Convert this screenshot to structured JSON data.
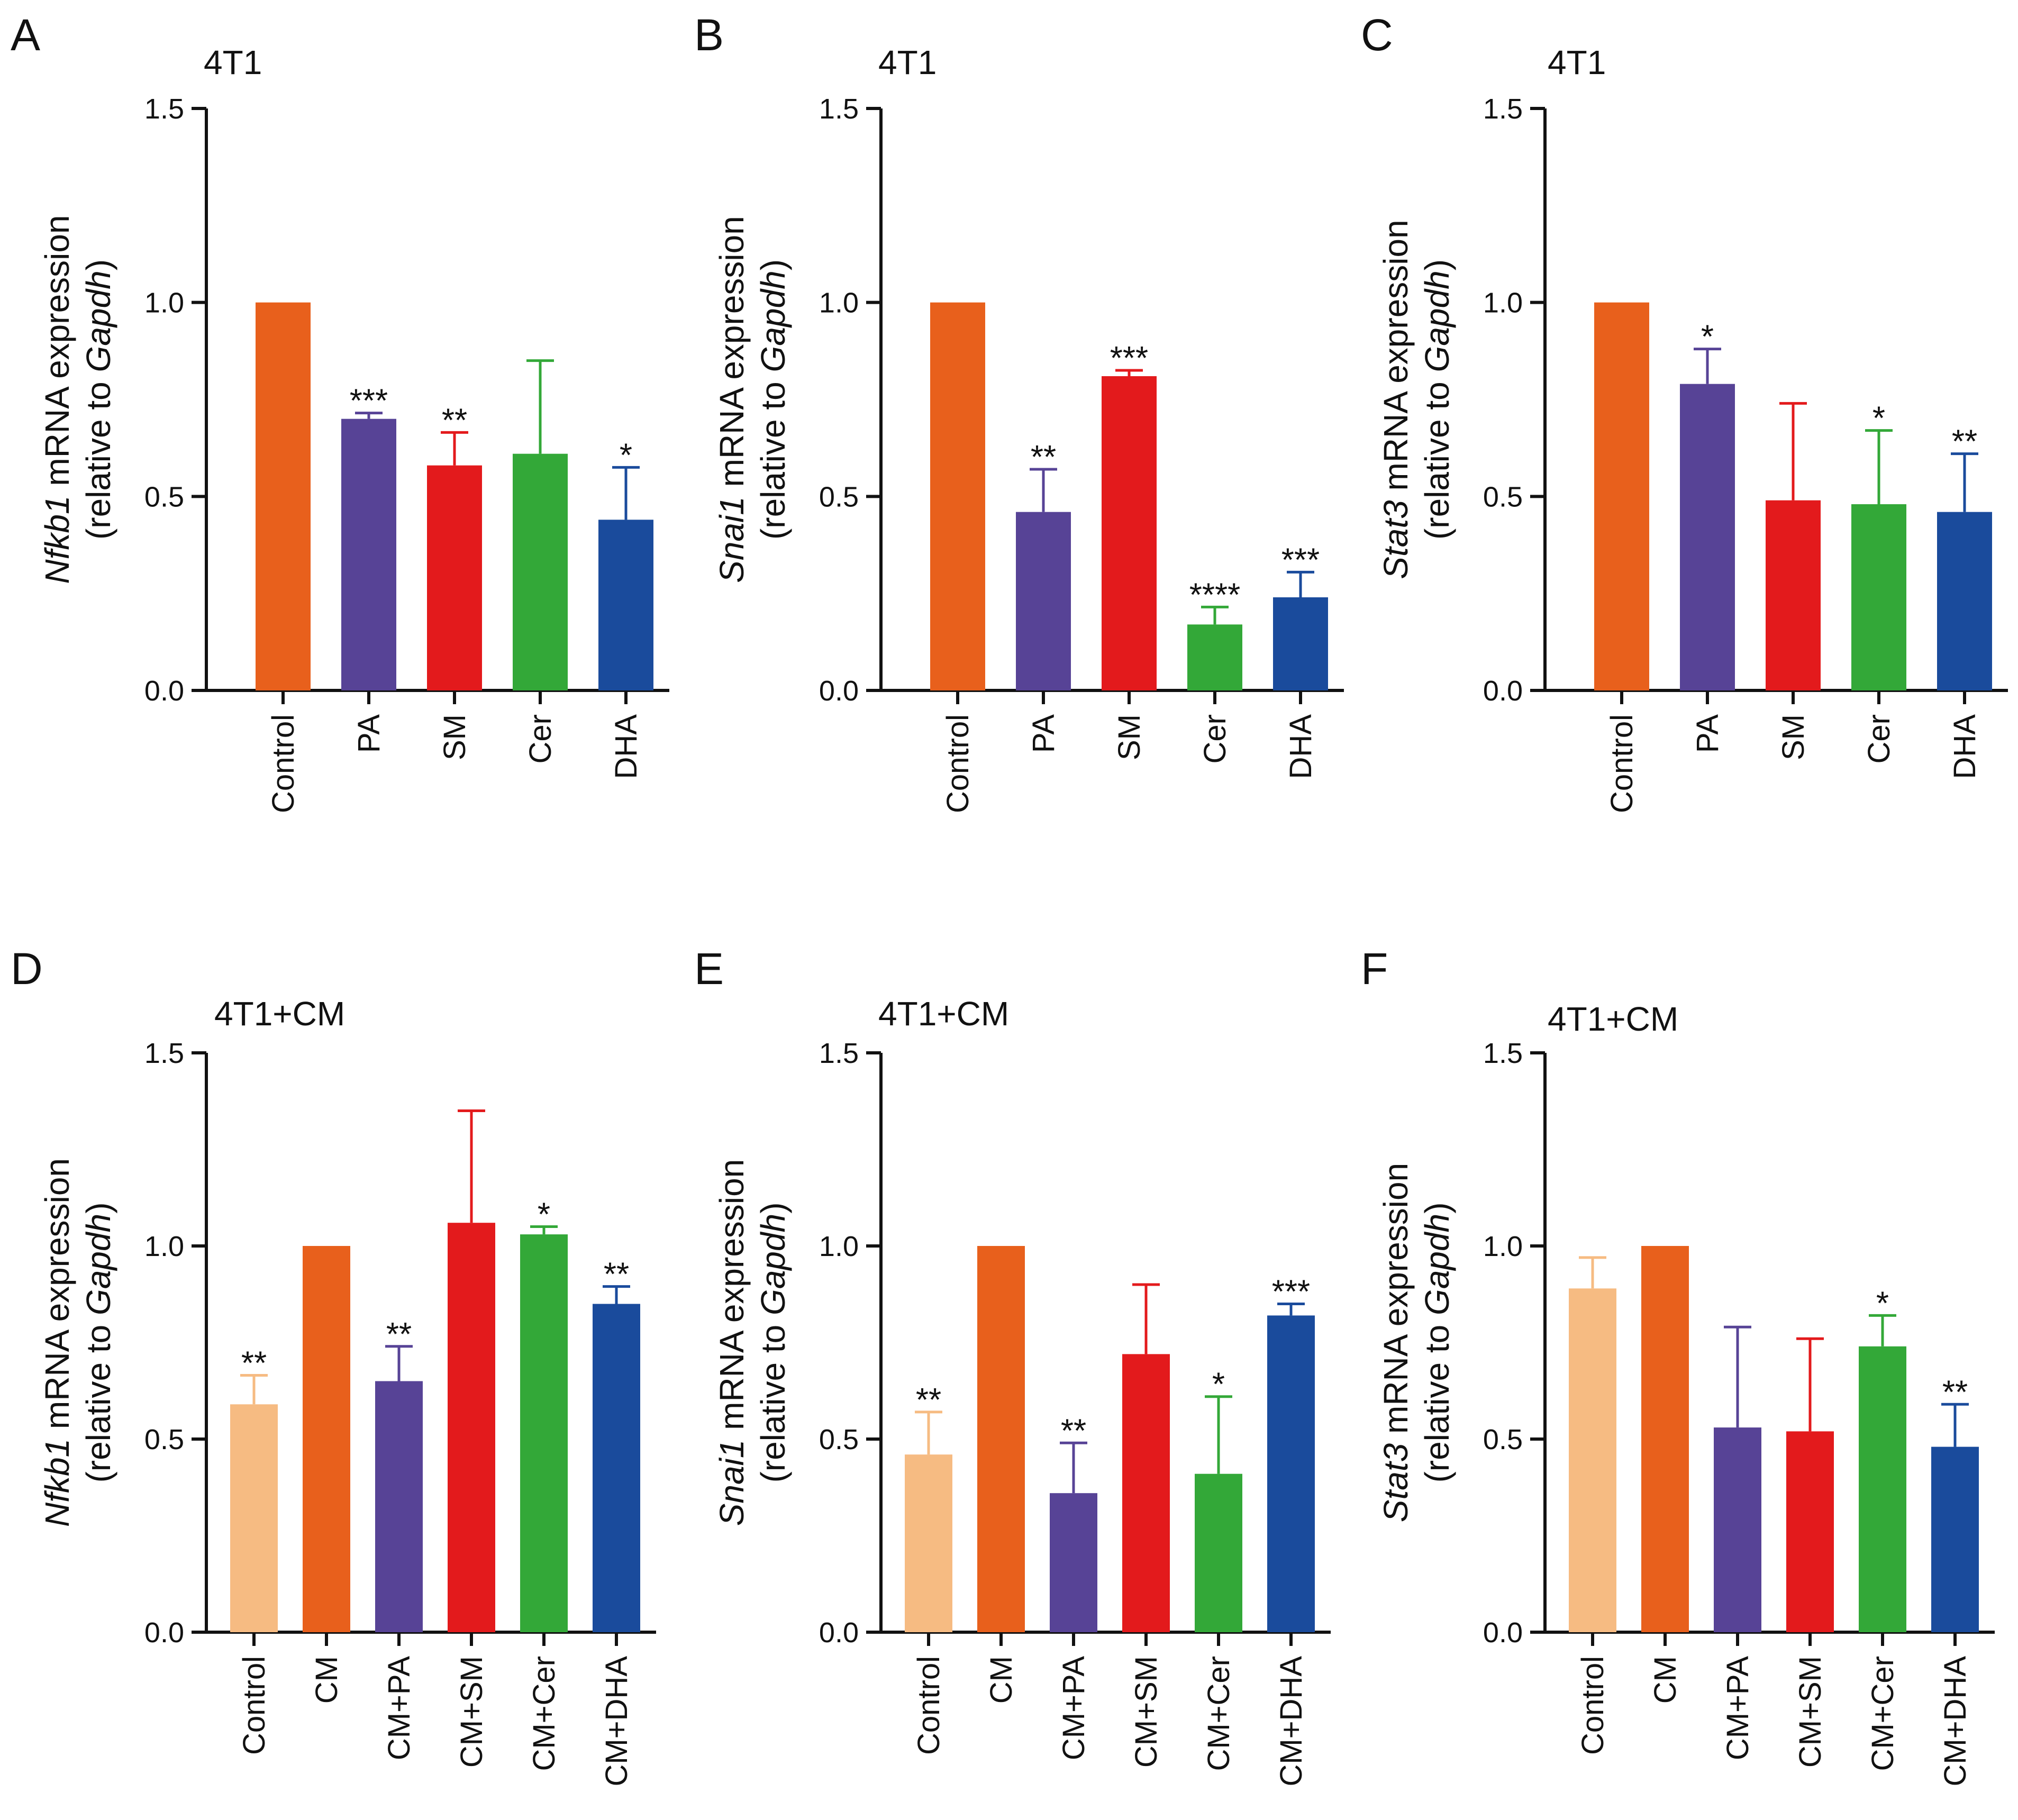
{
  "chart_data": [
    {
      "type": "bar",
      "panel": "A",
      "title": "4T1",
      "ylabel": {
        "gene": "Nfkb1",
        "rest": " mRNA expression",
        "line2_pre": "(relative to ",
        "ref": "Gapdh",
        "line2_post": ")"
      },
      "yticks": [
        "0.0",
        "0.5",
        "1.0",
        "1.5"
      ],
      "ylim": [
        0,
        1.5
      ],
      "categories": [
        "Control",
        "PA",
        "SM",
        "Cer",
        "DHA"
      ],
      "values": [
        1.0,
        0.7,
        0.58,
        0.61,
        0.44
      ],
      "errors": [
        0,
        0.015,
        0.085,
        0.24,
        0.135
      ],
      "significance": [
        "",
        "***",
        "**",
        "",
        "*"
      ],
      "colors": [
        "#e8601c",
        "#574396",
        "#e31a1c",
        "#33a838",
        "#1a4b9c"
      ]
    },
    {
      "type": "bar",
      "panel": "B",
      "title": "4T1",
      "ylabel": {
        "gene": "Snai1",
        "rest": " mRNA expression",
        "line2_pre": "(relative to ",
        "ref": "Gapdh",
        "line2_post": ")"
      },
      "yticks": [
        "0.0",
        "0.5",
        "1.0",
        "1.5"
      ],
      "ylim": [
        0,
        1.5
      ],
      "categories": [
        "Control",
        "PA",
        "SM",
        "Cer",
        "DHA"
      ],
      "values": [
        1.0,
        0.46,
        0.81,
        0.17,
        0.24
      ],
      "errors": [
        0,
        0.11,
        0.015,
        0.045,
        0.065
      ],
      "significance": [
        "",
        "**",
        "***",
        "****",
        "***"
      ],
      "colors": [
        "#e8601c",
        "#574396",
        "#e31a1c",
        "#33a838",
        "#1a4b9c"
      ]
    },
    {
      "type": "bar",
      "panel": "C",
      "title": "4T1",
      "ylabel": {
        "gene": "Stat3",
        "rest": " mRNA expression",
        "line2_pre": "(relative to ",
        "ref": "Gapdh",
        "line2_post": ")"
      },
      "yticks": [
        "0.0",
        "0.5",
        "1.0",
        "1.5"
      ],
      "ylim": [
        0,
        1.5
      ],
      "categories": [
        "Control",
        "PA",
        "SM",
        "Cer",
        "DHA"
      ],
      "values": [
        1.0,
        0.79,
        0.49,
        0.48,
        0.46
      ],
      "errors": [
        0,
        0.09,
        0.25,
        0.19,
        0.15
      ],
      "significance": [
        "",
        "*",
        "",
        "*",
        "**"
      ],
      "colors": [
        "#e8601c",
        "#574396",
        "#e31a1c",
        "#33a838",
        "#1a4b9c"
      ]
    },
    {
      "type": "bar",
      "panel": "D",
      "title": "4T1+CM",
      "ylabel": {
        "gene": "Nfkb1",
        "rest": " mRNA expression",
        "line2_pre": "(relative to ",
        "ref": "Gapdh",
        "line2_post": ")"
      },
      "yticks": [
        "0.0",
        "0.5",
        "1.0",
        "1.5"
      ],
      "ylim": [
        0,
        1.5
      ],
      "categories": [
        "Control",
        "CM",
        "CM+PA",
        "CM+SM",
        "CM+Cer",
        "CM+DHA"
      ],
      "values": [
        0.59,
        1.0,
        0.65,
        1.06,
        1.03,
        0.85
      ],
      "errors": [
        0.075,
        0,
        0.09,
        0.29,
        0.02,
        0.045
      ],
      "significance": [
        "**",
        "",
        "**",
        "",
        "*",
        "**"
      ],
      "colors": [
        "#f6bb82",
        "#e8601c",
        "#574396",
        "#e31a1c",
        "#33a838",
        "#1a4b9c"
      ]
    },
    {
      "type": "bar",
      "panel": "E",
      "title": "4T1+CM",
      "ylabel": {
        "gene": "Snai1",
        "rest": " mRNA expression",
        "line2_pre": "(relative to ",
        "ref": "Gapdh",
        "line2_post": ")"
      },
      "yticks": [
        "0.0",
        "0.5",
        "1.0",
        "1.5"
      ],
      "ylim": [
        0,
        1.5
      ],
      "categories": [
        "Control",
        "CM",
        "CM+PA",
        "CM+SM",
        "CM+Cer",
        "CM+DHA"
      ],
      "values": [
        0.46,
        1.0,
        0.36,
        0.72,
        0.41,
        0.82
      ],
      "errors": [
        0.11,
        0,
        0.13,
        0.18,
        0.2,
        0.03
      ],
      "significance": [
        "**",
        "",
        "**",
        "",
        "*",
        "***"
      ],
      "colors": [
        "#f6bb82",
        "#e8601c",
        "#574396",
        "#e31a1c",
        "#33a838",
        "#1a4b9c"
      ]
    },
    {
      "type": "bar",
      "panel": "F",
      "title": "4T1+CM",
      "ylabel": {
        "gene": "Stat3",
        "rest": " mRNA expression",
        "line2_pre": "(relative to ",
        "ref": "Gapdh",
        "line2_post": ")"
      },
      "yticks": [
        "0.0",
        "0.5",
        "1.0",
        "1.5"
      ],
      "ylim": [
        0,
        1.5
      ],
      "categories": [
        "Control",
        "CM",
        "CM+PA",
        "CM+SM",
        "CM+Cer",
        "CM+DHA"
      ],
      "values": [
        0.89,
        1.0,
        0.53,
        0.52,
        0.74,
        0.48
      ],
      "errors": [
        0.08,
        0,
        0.26,
        0.24,
        0.08,
        0.11
      ],
      "significance": [
        "",
        "",
        "",
        "",
        "*",
        "**"
      ],
      "colors": [
        "#f6bb82",
        "#e8601c",
        "#574396",
        "#e31a1c",
        "#33a838",
        "#1a4b9c"
      ]
    }
  ]
}
